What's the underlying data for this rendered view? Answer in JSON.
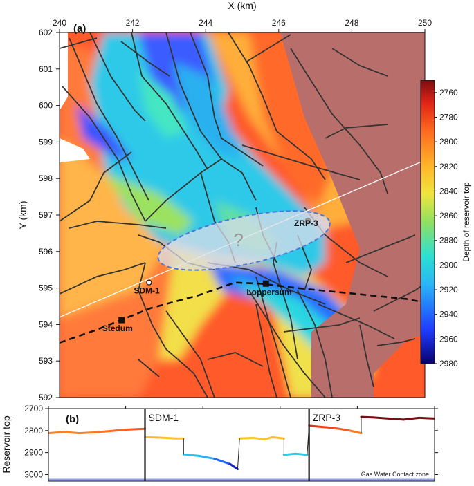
{
  "chart_data": [
    {
      "type": "heatmap",
      "panel_label": "(a)",
      "xlabel": "X (km)",
      "ylabel": "Y (km)",
      "xlim": [
        240,
        250
      ],
      "ylim": [
        592,
        602
      ],
      "x_ticks": [
        240,
        242,
        244,
        246,
        248,
        250
      ],
      "y_ticks": [
        592,
        593,
        594,
        595,
        596,
        597,
        598,
        599,
        600,
        601,
        602
      ],
      "colorbar": {
        "label": "Depth of reservoir top",
        "range": [
          2750,
          2980
        ],
        "ticks": [
          2760,
          2780,
          2800,
          2820,
          2840,
          2860,
          2880,
          2900,
          2920,
          2940,
          2960,
          2980
        ],
        "colormap": [
          "#08006e",
          "#1f3cff",
          "#29b6f6",
          "#2ce0d2",
          "#90e060",
          "#f0e53c",
          "#ffb429",
          "#ff6a1f",
          "#e02416",
          "#7a0e10"
        ]
      },
      "wells": [
        {
          "name": "SDM-1",
          "x": 242.45,
          "y": 595.15,
          "marker": "circle"
        },
        {
          "name": "ZRP-3",
          "x": 246.8,
          "y": 596.85,
          "marker": "circle"
        },
        {
          "name": "Loppersum",
          "x": 245.65,
          "y": 595.12,
          "marker": "square"
        },
        {
          "name": "Stedum",
          "x": 241.7,
          "y": 594.12,
          "marker": "square"
        }
      ],
      "annotation": "?",
      "uncertainty_ellipse": {
        "cx": 245.05,
        "cy": 596.3,
        "rx": 2.4,
        "ry": 0.65,
        "angle_deg": -12
      },
      "profile_line": {
        "x": [
          240,
          250
        ],
        "y": [
          594.2,
          598.5
        ]
      },
      "dashed_track": {
        "x": [
          240,
          241.0,
          242.5,
          243.8,
          244.8,
          245.5,
          246.5,
          247.5,
          248.5,
          249.5,
          250
        ],
        "y": [
          593.5,
          593.85,
          594.45,
          594.8,
          595.15,
          595.12,
          595.0,
          594.9,
          594.8,
          594.7,
          594.6
        ]
      }
    },
    {
      "type": "line",
      "panel_label": "(b)",
      "ylabel": "Reservoir top",
      "xlim": [
        240,
        250
      ],
      "ylim": [
        3000,
        2700
      ],
      "y_ticks": [
        2700,
        2800,
        2900,
        3000
      ],
      "markers": [
        {
          "name": "SDM-1",
          "x": 242.5
        },
        {
          "name": "ZRP-3",
          "x": 246.75
        }
      ],
      "gas_water_contact": {
        "label": "Gas Water Contact zone",
        "y": [
          3018,
          3030
        ]
      },
      "series": [
        {
          "x": [
            240.0,
            240.4,
            240.8,
            241.2,
            241.6,
            242.0,
            242.5
          ],
          "values": [
            2812,
            2806,
            2812,
            2808,
            2802,
            2796,
            2792
          ]
        },
        {
          "x": [
            242.5,
            242.9,
            243.3,
            243.5
          ],
          "values": [
            2830,
            2832,
            2836,
            2836
          ]
        },
        {
          "x": [
            243.5,
            243.9,
            244.3,
            244.7,
            244.9
          ],
          "values": [
            2908,
            2915,
            2928,
            2952,
            2975
          ]
        },
        {
          "x": [
            244.95,
            245.3,
            245.6,
            245.8,
            246.1
          ],
          "values": [
            2836,
            2833,
            2840,
            2830,
            2836
          ]
        },
        {
          "x": [
            246.1,
            246.4,
            246.7
          ],
          "values": [
            2910,
            2905,
            2910
          ]
        },
        {
          "x": [
            246.75,
            247.0,
            247.4,
            247.8,
            248.1
          ],
          "values": [
            2778,
            2782,
            2788,
            2800,
            2812
          ]
        },
        {
          "x": [
            248.1,
            248.4,
            248.8,
            249.2,
            249.6,
            250.0
          ],
          "values": [
            2738,
            2740,
            2745,
            2750,
            2742,
            2745
          ]
        }
      ]
    }
  ]
}
